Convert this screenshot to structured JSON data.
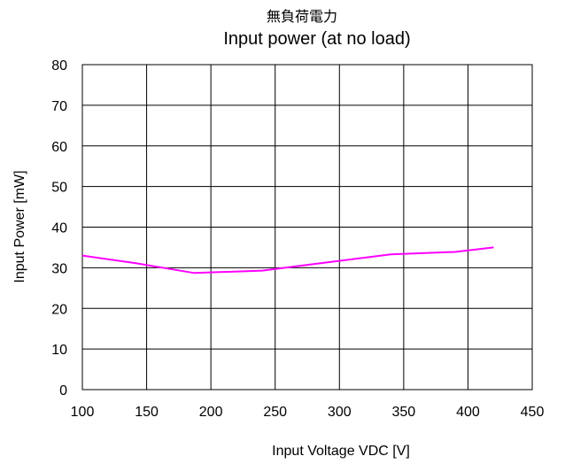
{
  "chart_data": {
    "type": "line",
    "title_jp": "無負荷電力",
    "title": "Input power (at no load)",
    "xlabel": "Input Voltage VDC [V]",
    "ylabel": "Input Power [mW]",
    "xlim": [
      100,
      450
    ],
    "ylim": [
      0,
      80
    ],
    "x_ticks": [
      100,
      150,
      200,
      250,
      300,
      350,
      400,
      450
    ],
    "y_ticks": [
      0,
      10,
      20,
      30,
      40,
      50,
      60,
      70,
      80
    ],
    "grid": true,
    "legend": "none",
    "series": [
      {
        "color": "#ff00ff",
        "x": [
          100,
          140,
          187,
          240,
          290,
          340,
          390,
          420
        ],
        "y": [
          33.0,
          31.2,
          28.7,
          29.3,
          31.3,
          33.3,
          33.9,
          35.0
        ]
      }
    ]
  }
}
